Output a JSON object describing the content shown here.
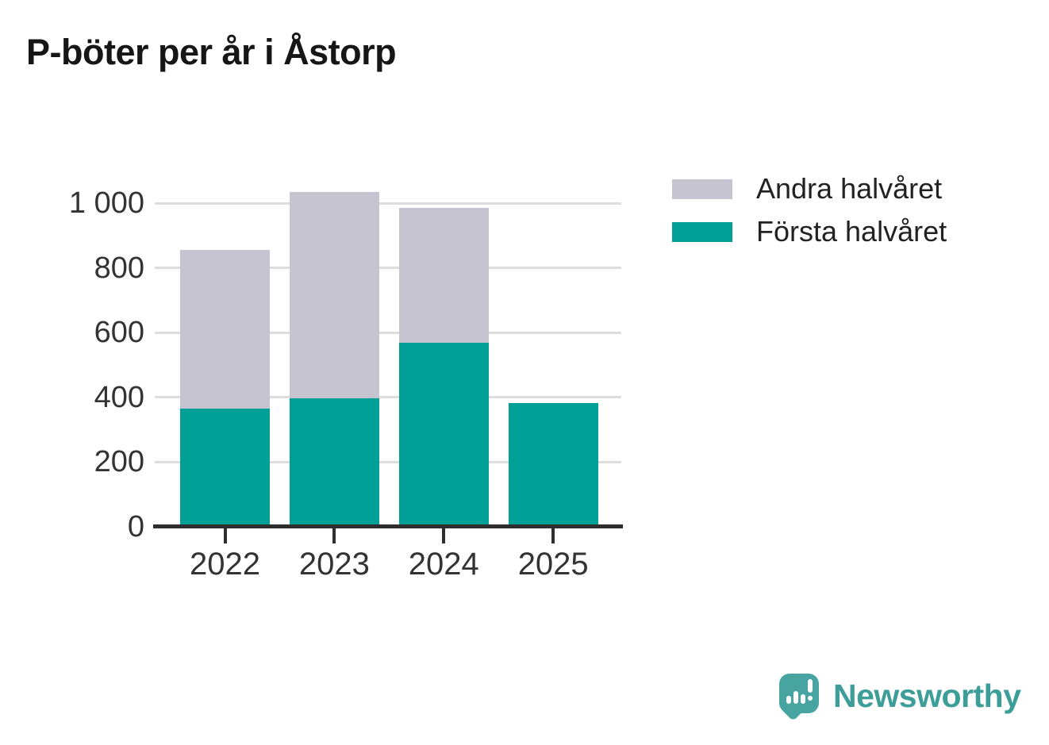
{
  "title": "P-böter per år i Åstorp",
  "colors": {
    "first_half": "#00A096",
    "second_half": "#C6C4D0",
    "grid": "#dddddd",
    "axis": "#2e2e2e",
    "axis_text": "#333333",
    "title_text": "#161616"
  },
  "chart_data": {
    "type": "bar",
    "stacked": true,
    "title": "P-böter per år i Åstorp",
    "categories": [
      "2022",
      "2023",
      "2024",
      "2025"
    ],
    "series": [
      {
        "name": "Första halvåret",
        "color": "#00A096",
        "values": [
          365,
          397,
          568,
          382
        ]
      },
      {
        "name": "Andra halvåret",
        "color": "#C6C4D0",
        "values": [
          490,
          637,
          417,
          0
        ]
      }
    ],
    "totals": [
      855,
      1034,
      985,
      382
    ],
    "xlabel": "",
    "ylabel": "",
    "ylim": [
      0,
      1080
    ],
    "yticks": [
      0,
      200,
      400,
      600,
      800,
      1000
    ],
    "ytick_labels": [
      "0",
      "200",
      "400",
      "600",
      "800",
      "1 000"
    ],
    "grid": "horizontal",
    "legend_position": "top-right"
  },
  "legend": {
    "items": [
      {
        "label": "Andra halvåret",
        "color": "#C6C4D0"
      },
      {
        "label": "Första halvåret",
        "color": "#00A096"
      }
    ]
  },
  "brand": {
    "name": "Newsworthy",
    "mark_color": "#47A4A0",
    "text_color": "#3D9E99",
    "logo_icon": "bar-chart-exclamation-speech-bubble"
  }
}
